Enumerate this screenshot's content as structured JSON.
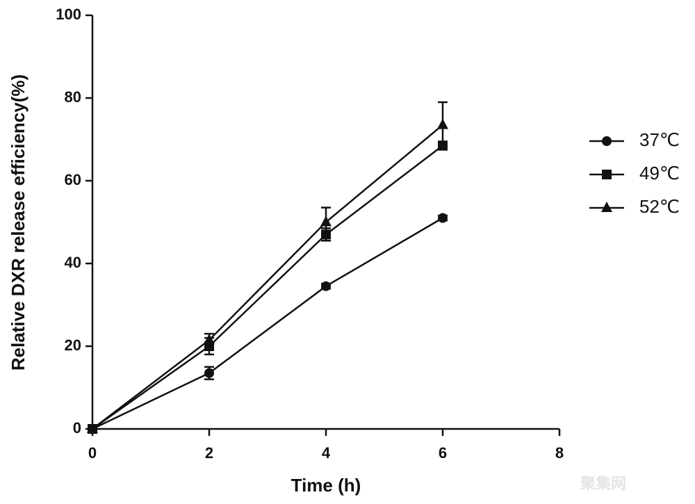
{
  "chart_data": {
    "type": "line",
    "x_label": "Time (h)",
    "y_label": "Relative DXR release efficiency(%)",
    "x": [
      0,
      2,
      4,
      6
    ],
    "series": [
      {
        "name": "37℃",
        "color": "#111111",
        "marker": "circle",
        "values": [
          0,
          13.5,
          34.5,
          51
        ],
        "errors": [
          0,
          1.5,
          0.6,
          0.6
        ]
      },
      {
        "name": "49℃",
        "color": "#111111",
        "marker": "square",
        "values": [
          0,
          20,
          47,
          68.5
        ],
        "errors": [
          0,
          2,
          1.5,
          1
        ]
      },
      {
        "name": "52℃",
        "color": "#111111",
        "marker": "triangle",
        "values": [
          0,
          21.5,
          50,
          73.5
        ],
        "errors": [
          0,
          1.5,
          3.5,
          5.5
        ]
      }
    ],
    "xlim": [
      0,
      8
    ],
    "xticks": [
      0,
      2,
      4,
      6,
      8
    ],
    "ylim": [
      0,
      100
    ],
    "yticks": [
      0,
      20,
      40,
      60,
      80,
      100
    ],
    "grid": false,
    "legend": "right",
    "watermark": "聚集网"
  }
}
